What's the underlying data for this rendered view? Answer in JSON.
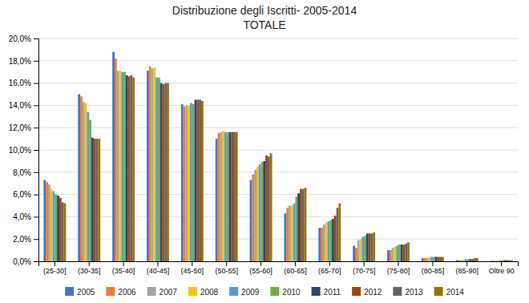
{
  "chart_data": {
    "type": "bar",
    "title": "Distribuzione degli Iscritti- 2005-2014",
    "subtitle": "TOTALE",
    "categories": [
      "(25-30]",
      "(30-35]",
      "(35-40]",
      "(40-45]",
      "(45-50]",
      "(50-55]",
      "(55-60]",
      "(60-65]",
      "(65-70]",
      "(70-75]",
      "(75-80]",
      "(80-85]",
      "(85-90]",
      "Oltre 90"
    ],
    "series": [
      {
        "name": "2005",
        "color": "#4472C4",
        "values": [
          7.3,
          15.0,
          18.8,
          17.1,
          14.1,
          11.0,
          7.3,
          4.3,
          3.0,
          1.4,
          1.0,
          0.3,
          0.1,
          0.05
        ]
      },
      {
        "name": "2006",
        "color": "#ED7D31",
        "values": [
          7.1,
          14.8,
          18.2,
          17.5,
          13.9,
          11.5,
          7.8,
          4.8,
          3.0,
          1.2,
          1.0,
          0.3,
          0.1,
          0.05
        ]
      },
      {
        "name": "2007",
        "color": "#A5A5A5",
        "values": [
          6.9,
          14.3,
          17.1,
          17.3,
          14.0,
          11.6,
          8.2,
          5.0,
          3.3,
          1.9,
          1.2,
          0.3,
          0.1,
          0.05
        ]
      },
      {
        "name": "2008",
        "color": "#FFC000",
        "values": [
          6.5,
          14.2,
          17.1,
          17.4,
          14.0,
          11.7,
          8.5,
          5.0,
          3.5,
          2.0,
          1.3,
          0.35,
          0.15,
          0.05
        ]
      },
      {
        "name": "2009",
        "color": "#5B9BD5",
        "values": [
          6.3,
          13.4,
          17.0,
          16.5,
          14.2,
          11.6,
          8.7,
          5.2,
          3.6,
          2.2,
          1.4,
          0.4,
          0.2,
          0.1
        ]
      },
      {
        "name": "2010",
        "color": "#70AD47",
        "values": [
          6.0,
          12.7,
          17.0,
          16.5,
          14.1,
          11.6,
          8.9,
          5.8,
          3.7,
          2.3,
          1.5,
          0.4,
          0.2,
          0.1
        ]
      },
      {
        "name": "2011",
        "color": "#264478",
        "values": [
          5.9,
          11.1,
          16.7,
          16.0,
          14.5,
          11.6,
          9.0,
          6.1,
          3.8,
          2.5,
          1.5,
          0.4,
          0.2,
          0.1
        ]
      },
      {
        "name": "2012",
        "color": "#9E480E",
        "values": [
          5.7,
          11.0,
          16.6,
          15.9,
          14.5,
          11.6,
          9.5,
          6.5,
          4.1,
          2.5,
          1.5,
          0.4,
          0.2,
          0.1
        ]
      },
      {
        "name": "2013",
        "color": "#636363",
        "values": [
          5.3,
          11.0,
          16.7,
          16.0,
          14.5,
          11.6,
          9.4,
          6.5,
          4.8,
          2.5,
          1.6,
          0.4,
          0.3,
          0.1
        ]
      },
      {
        "name": "2014",
        "color": "#997300",
        "values": [
          5.2,
          11.0,
          16.5,
          16.0,
          14.4,
          11.6,
          9.7,
          6.6,
          5.2,
          2.6,
          1.7,
          0.4,
          0.3,
          0.1
        ]
      }
    ],
    "ylim": [
      0,
      20.0
    ],
    "yticks": [
      {
        "value": 0,
        "label": "0,0%"
      },
      {
        "value": 2.0,
        "label": "2,0%"
      },
      {
        "value": 4.0,
        "label": "4,0%"
      },
      {
        "value": 6.0,
        "label": "6,0%"
      },
      {
        "value": 8.0,
        "label": "8,0%"
      },
      {
        "value": 10.0,
        "label": "10,0%"
      },
      {
        "value": 12.0,
        "label": "12,0%"
      },
      {
        "value": 14.0,
        "label": "14,0%"
      },
      {
        "value": 16.0,
        "label": "16,0%"
      },
      {
        "value": 18.0,
        "label": "18,0%"
      },
      {
        "value": 20.0,
        "label": "20,0%"
      }
    ],
    "grid": true,
    "legend": "bottom"
  }
}
